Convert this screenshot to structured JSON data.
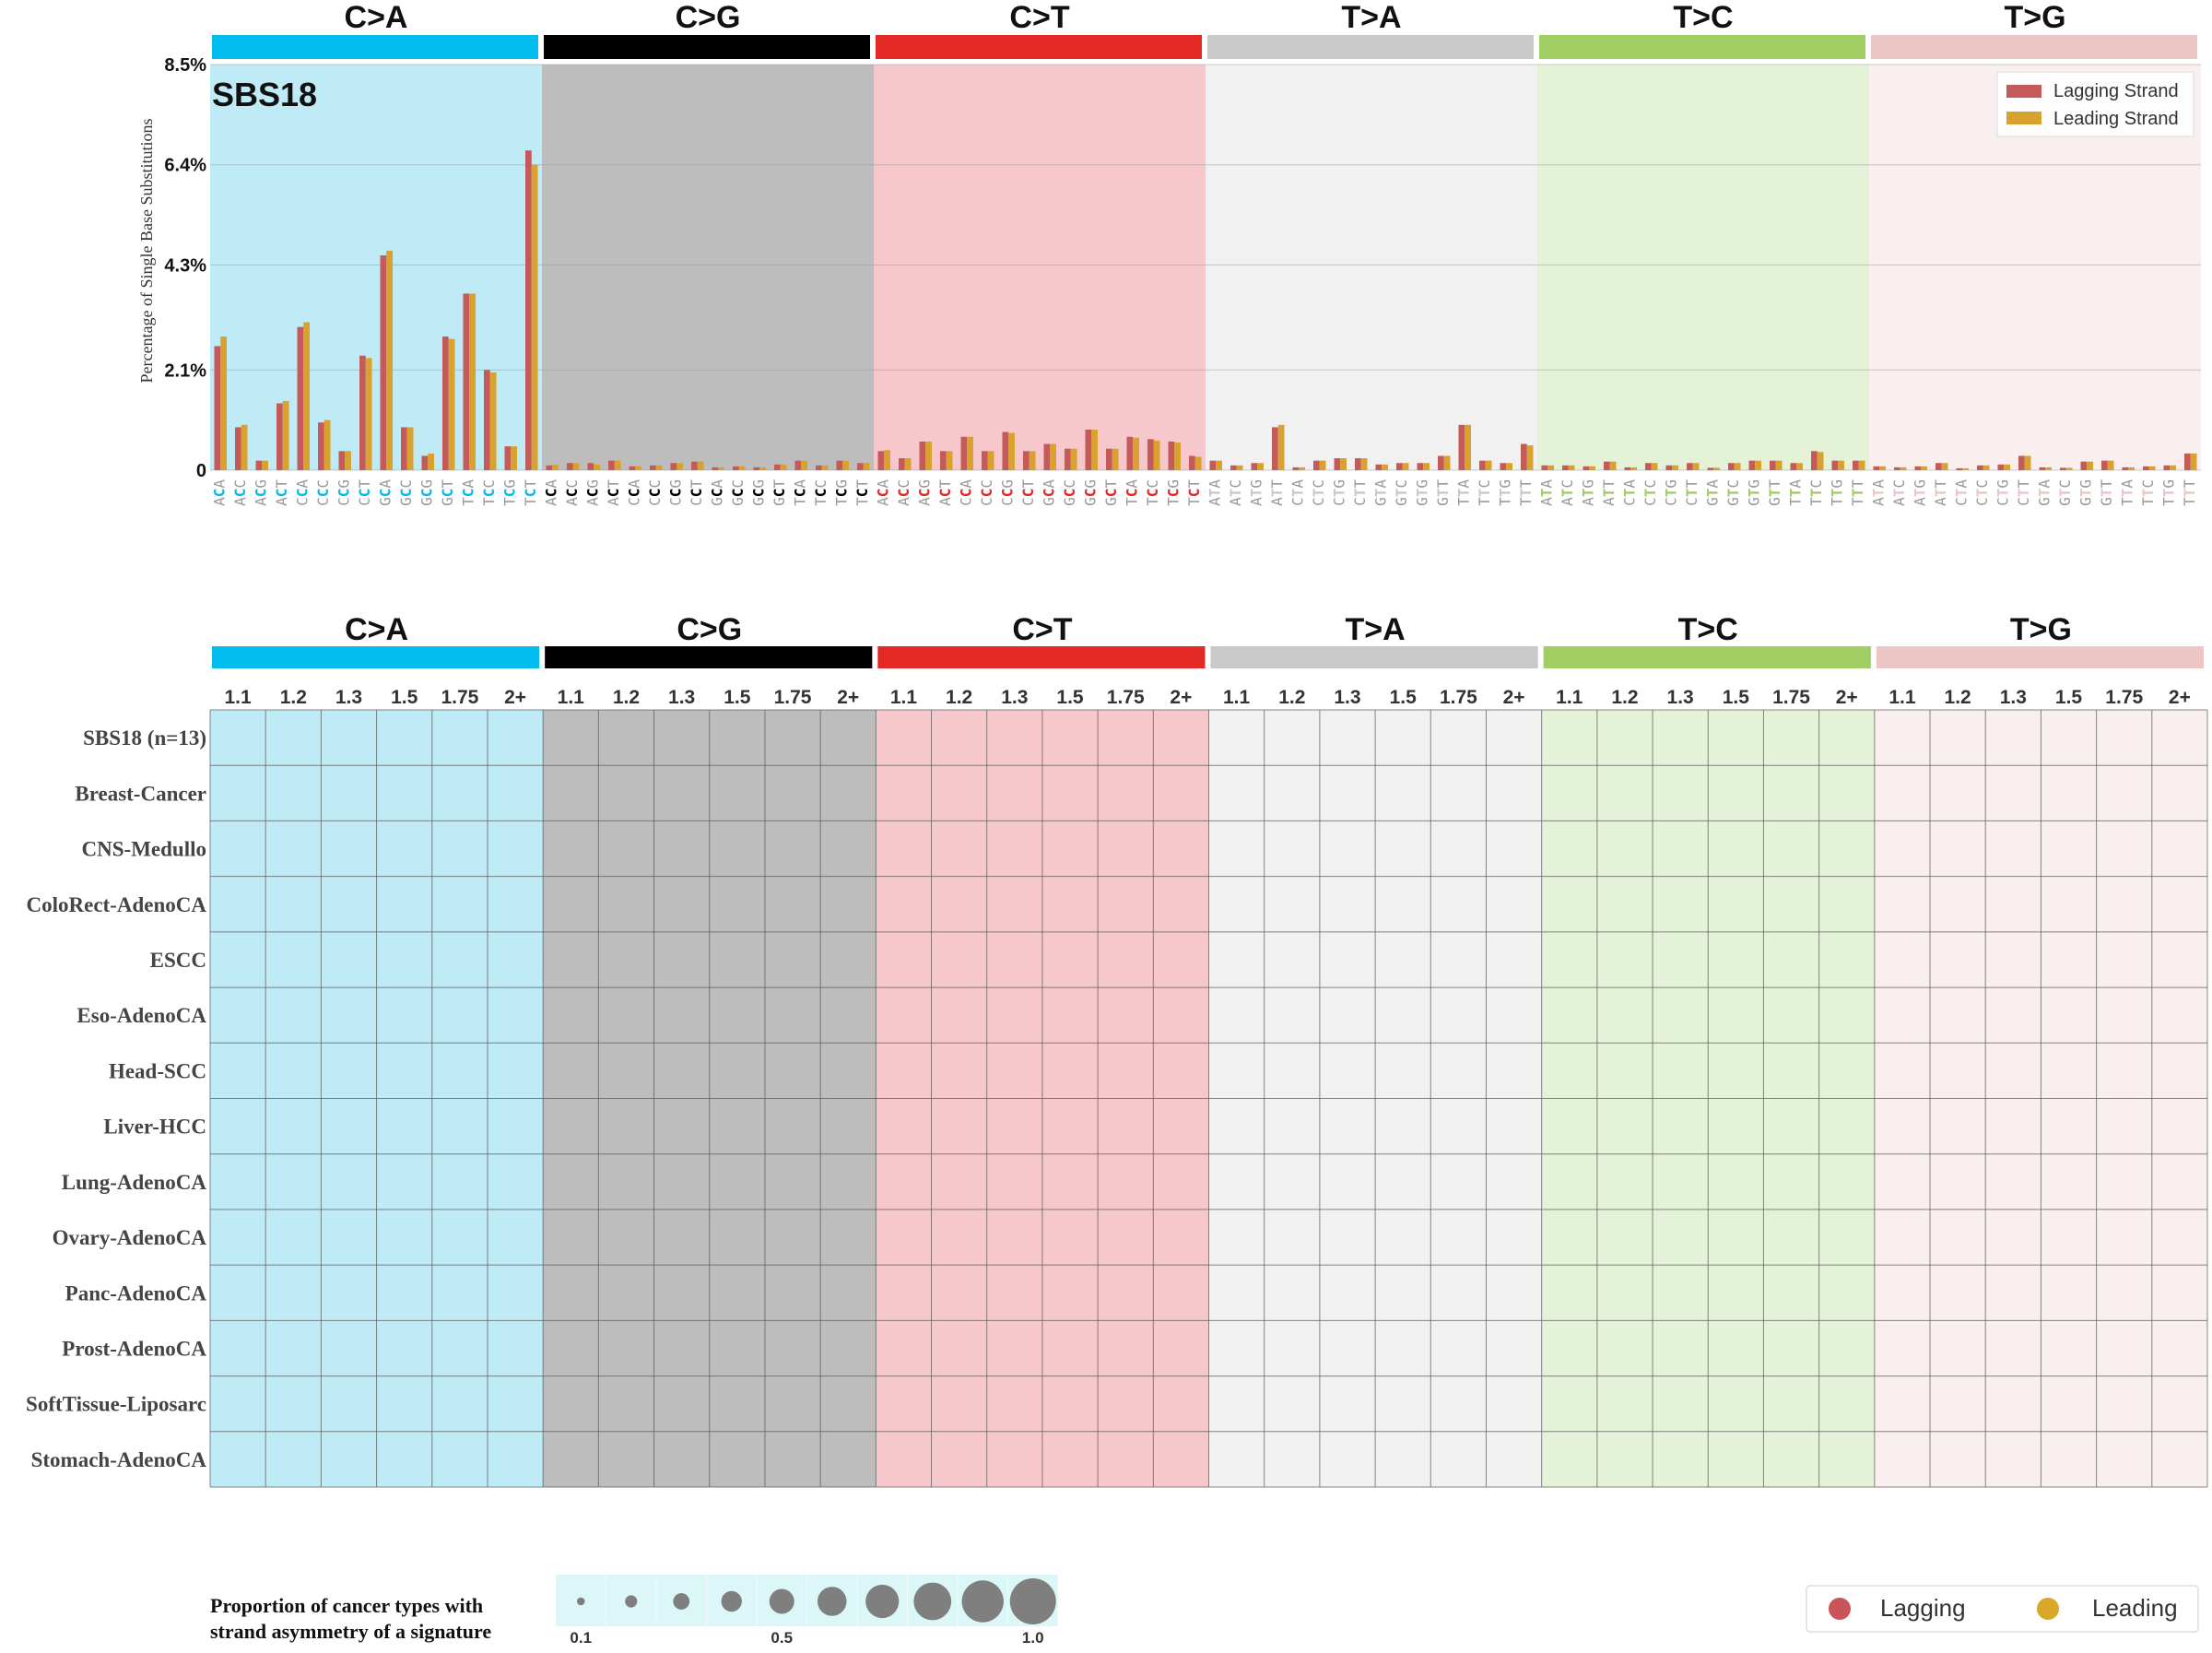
{
  "mutation_types": [
    {
      "label": "C>A",
      "color": "#03bcee",
      "bg": "#bfebf6",
      "ref": "C"
    },
    {
      "label": "C>G",
      "color": "#010101",
      "bg": "#bdbdbd",
      "ref": "C"
    },
    {
      "label": "C>T",
      "color": "#e32926",
      "bg": "#f6c8cb",
      "ref": "C"
    },
    {
      "label": "T>A",
      "color": "#cac9c9",
      "bg": "#f1f1f1",
      "ref": "T"
    },
    {
      "label": "T>C",
      "color": "#a1ce63",
      "bg": "#e4f2d7",
      "ref": "T"
    },
    {
      "label": "T>G",
      "color": "#ebc6c4",
      "bg": "#f9efee",
      "ref": "T"
    }
  ],
  "chart_data": [
    {
      "type": "bar",
      "title": "SBS18",
      "ylabel": "Percentage of Single Base Substitutions",
      "yticks": [
        "0",
        "2.1%",
        "4.3%",
        "6.4%",
        "8.5%"
      ],
      "ytick_values": [
        0,
        2.1,
        4.3,
        6.4,
        8.5
      ],
      "ylim": [
        0,
        8.5
      ],
      "grid": true,
      "legend_position": "top-right",
      "categories": [
        "ACA",
        "ACC",
        "ACG",
        "ACT",
        "CCA",
        "CCC",
        "CCG",
        "CCT",
        "GCA",
        "GCC",
        "GCG",
        "GCT",
        "TCA",
        "TCC",
        "TCG",
        "TCT",
        "ACA",
        "ACC",
        "ACG",
        "ACT",
        "CCA",
        "CCC",
        "CCG",
        "CCT",
        "GCA",
        "GCC",
        "GCG",
        "GCT",
        "TCA",
        "TCC",
        "TCG",
        "TCT",
        "ACA",
        "ACC",
        "ACG",
        "ACT",
        "CCA",
        "CCC",
        "CCG",
        "CCT",
        "GCA",
        "GCC",
        "GCG",
        "GCT",
        "TCA",
        "TCC",
        "TCG",
        "TCT",
        "ATA",
        "ATC",
        "ATG",
        "ATT",
        "CTA",
        "CTC",
        "CTG",
        "CTT",
        "GTA",
        "GTC",
        "GTG",
        "GTT",
        "TTA",
        "TTC",
        "TTG",
        "TTT",
        "ATA",
        "ATC",
        "ATG",
        "ATT",
        "CTA",
        "CTC",
        "CTG",
        "CTT",
        "GTA",
        "GTC",
        "GTG",
        "GTT",
        "TTA",
        "TTC",
        "TTG",
        "TTT",
        "ATA",
        "ATC",
        "ATG",
        "ATT",
        "CTA",
        "CTC",
        "CTG",
        "CTT",
        "GTA",
        "GTC",
        "GTG",
        "GTT",
        "TTA",
        "TTC",
        "TTG",
        "TTT"
      ],
      "series": [
        {
          "name": "Lagging Strand",
          "color": "#c55a5a",
          "values": [
            2.6,
            0.9,
            0.2,
            1.4,
            3.0,
            1.0,
            0.4,
            2.4,
            4.5,
            0.9,
            0.3,
            2.8,
            3.7,
            2.1,
            0.5,
            6.7,
            0.1,
            0.15,
            0.15,
            0.2,
            0.08,
            0.1,
            0.15,
            0.18,
            0.06,
            0.08,
            0.06,
            0.12,
            0.2,
            0.1,
            0.2,
            0.15,
            0.4,
            0.25,
            0.6,
            0.4,
            0.7,
            0.4,
            0.8,
            0.4,
            0.55,
            0.45,
            0.85,
            0.45,
            0.7,
            0.65,
            0.6,
            0.3,
            0.2,
            0.1,
            0.15,
            0.9,
            0.06,
            0.2,
            0.25,
            0.25,
            0.12,
            0.15,
            0.15,
            0.3,
            0.95,
            0.2,
            0.15,
            0.55,
            0.1,
            0.1,
            0.08,
            0.18,
            0.06,
            0.15,
            0.1,
            0.15,
            0.05,
            0.15,
            0.2,
            0.2,
            0.15,
            0.4,
            0.2,
            0.2,
            0.08,
            0.06,
            0.08,
            0.15,
            0.04,
            0.1,
            0.12,
            0.3,
            0.06,
            0.05,
            0.18,
            0.2,
            0.06,
            0.08,
            0.1,
            0.35
          ]
        },
        {
          "name": "Leading Strand",
          "color": "#d9a12d",
          "values": [
            2.8,
            0.95,
            0.2,
            1.45,
            3.1,
            1.05,
            0.4,
            2.35,
            4.6,
            0.9,
            0.35,
            2.75,
            3.7,
            2.05,
            0.5,
            6.4,
            0.12,
            0.15,
            0.12,
            0.2,
            0.08,
            0.1,
            0.15,
            0.18,
            0.06,
            0.08,
            0.06,
            0.12,
            0.2,
            0.1,
            0.2,
            0.15,
            0.42,
            0.25,
            0.6,
            0.4,
            0.7,
            0.4,
            0.78,
            0.4,
            0.55,
            0.45,
            0.85,
            0.45,
            0.68,
            0.62,
            0.58,
            0.28,
            0.2,
            0.1,
            0.15,
            0.95,
            0.06,
            0.2,
            0.25,
            0.25,
            0.12,
            0.15,
            0.15,
            0.3,
            0.95,
            0.2,
            0.15,
            0.52,
            0.1,
            0.1,
            0.08,
            0.18,
            0.06,
            0.15,
            0.1,
            0.15,
            0.05,
            0.15,
            0.2,
            0.2,
            0.15,
            0.38,
            0.2,
            0.2,
            0.08,
            0.06,
            0.08,
            0.15,
            0.04,
            0.1,
            0.12,
            0.3,
            0.06,
            0.05,
            0.18,
            0.2,
            0.06,
            0.08,
            0.1,
            0.35
          ]
        }
      ]
    },
    {
      "type": "heatmap",
      "column_groups": [
        "C>A",
        "C>G",
        "C>T",
        "T>A",
        "T>C",
        "T>G"
      ],
      "columns": [
        "1.1",
        "1.2",
        "1.3",
        "1.5",
        "1.75",
        "2+"
      ],
      "rows": [
        "SBS18 (n=13)",
        "Breast-Cancer",
        "CNS-Medullo",
        "ColoRect-AdenoCA",
        "ESCC",
        "Eso-AdenoCA",
        "Head-SCC",
        "Liver-HCC",
        "Lung-AdenoCA",
        "Ovary-AdenoCA",
        "Panc-AdenoCA",
        "Prost-AdenoCA",
        "SoftTissue-Liposarc",
        "Stomach-AdenoCA"
      ],
      "size_legend": {
        "title_line1": "Proportion of cancer types with",
        "title_line2": "strand asymmetry of a signature",
        "levels": [
          0.1,
          0.2,
          0.3,
          0.4,
          0.5,
          0.6,
          0.7,
          0.8,
          0.9,
          1.0
        ],
        "tick_labels": [
          "0.1",
          "0.5",
          "1.0"
        ],
        "bubble_color": "#7f7f7f",
        "bg": "#dcf7f7"
      },
      "color_legend": [
        {
          "label": "Lagging",
          "color": "#c9555a"
        },
        {
          "label": "Leading",
          "color": "#d9a829"
        }
      ]
    }
  ]
}
